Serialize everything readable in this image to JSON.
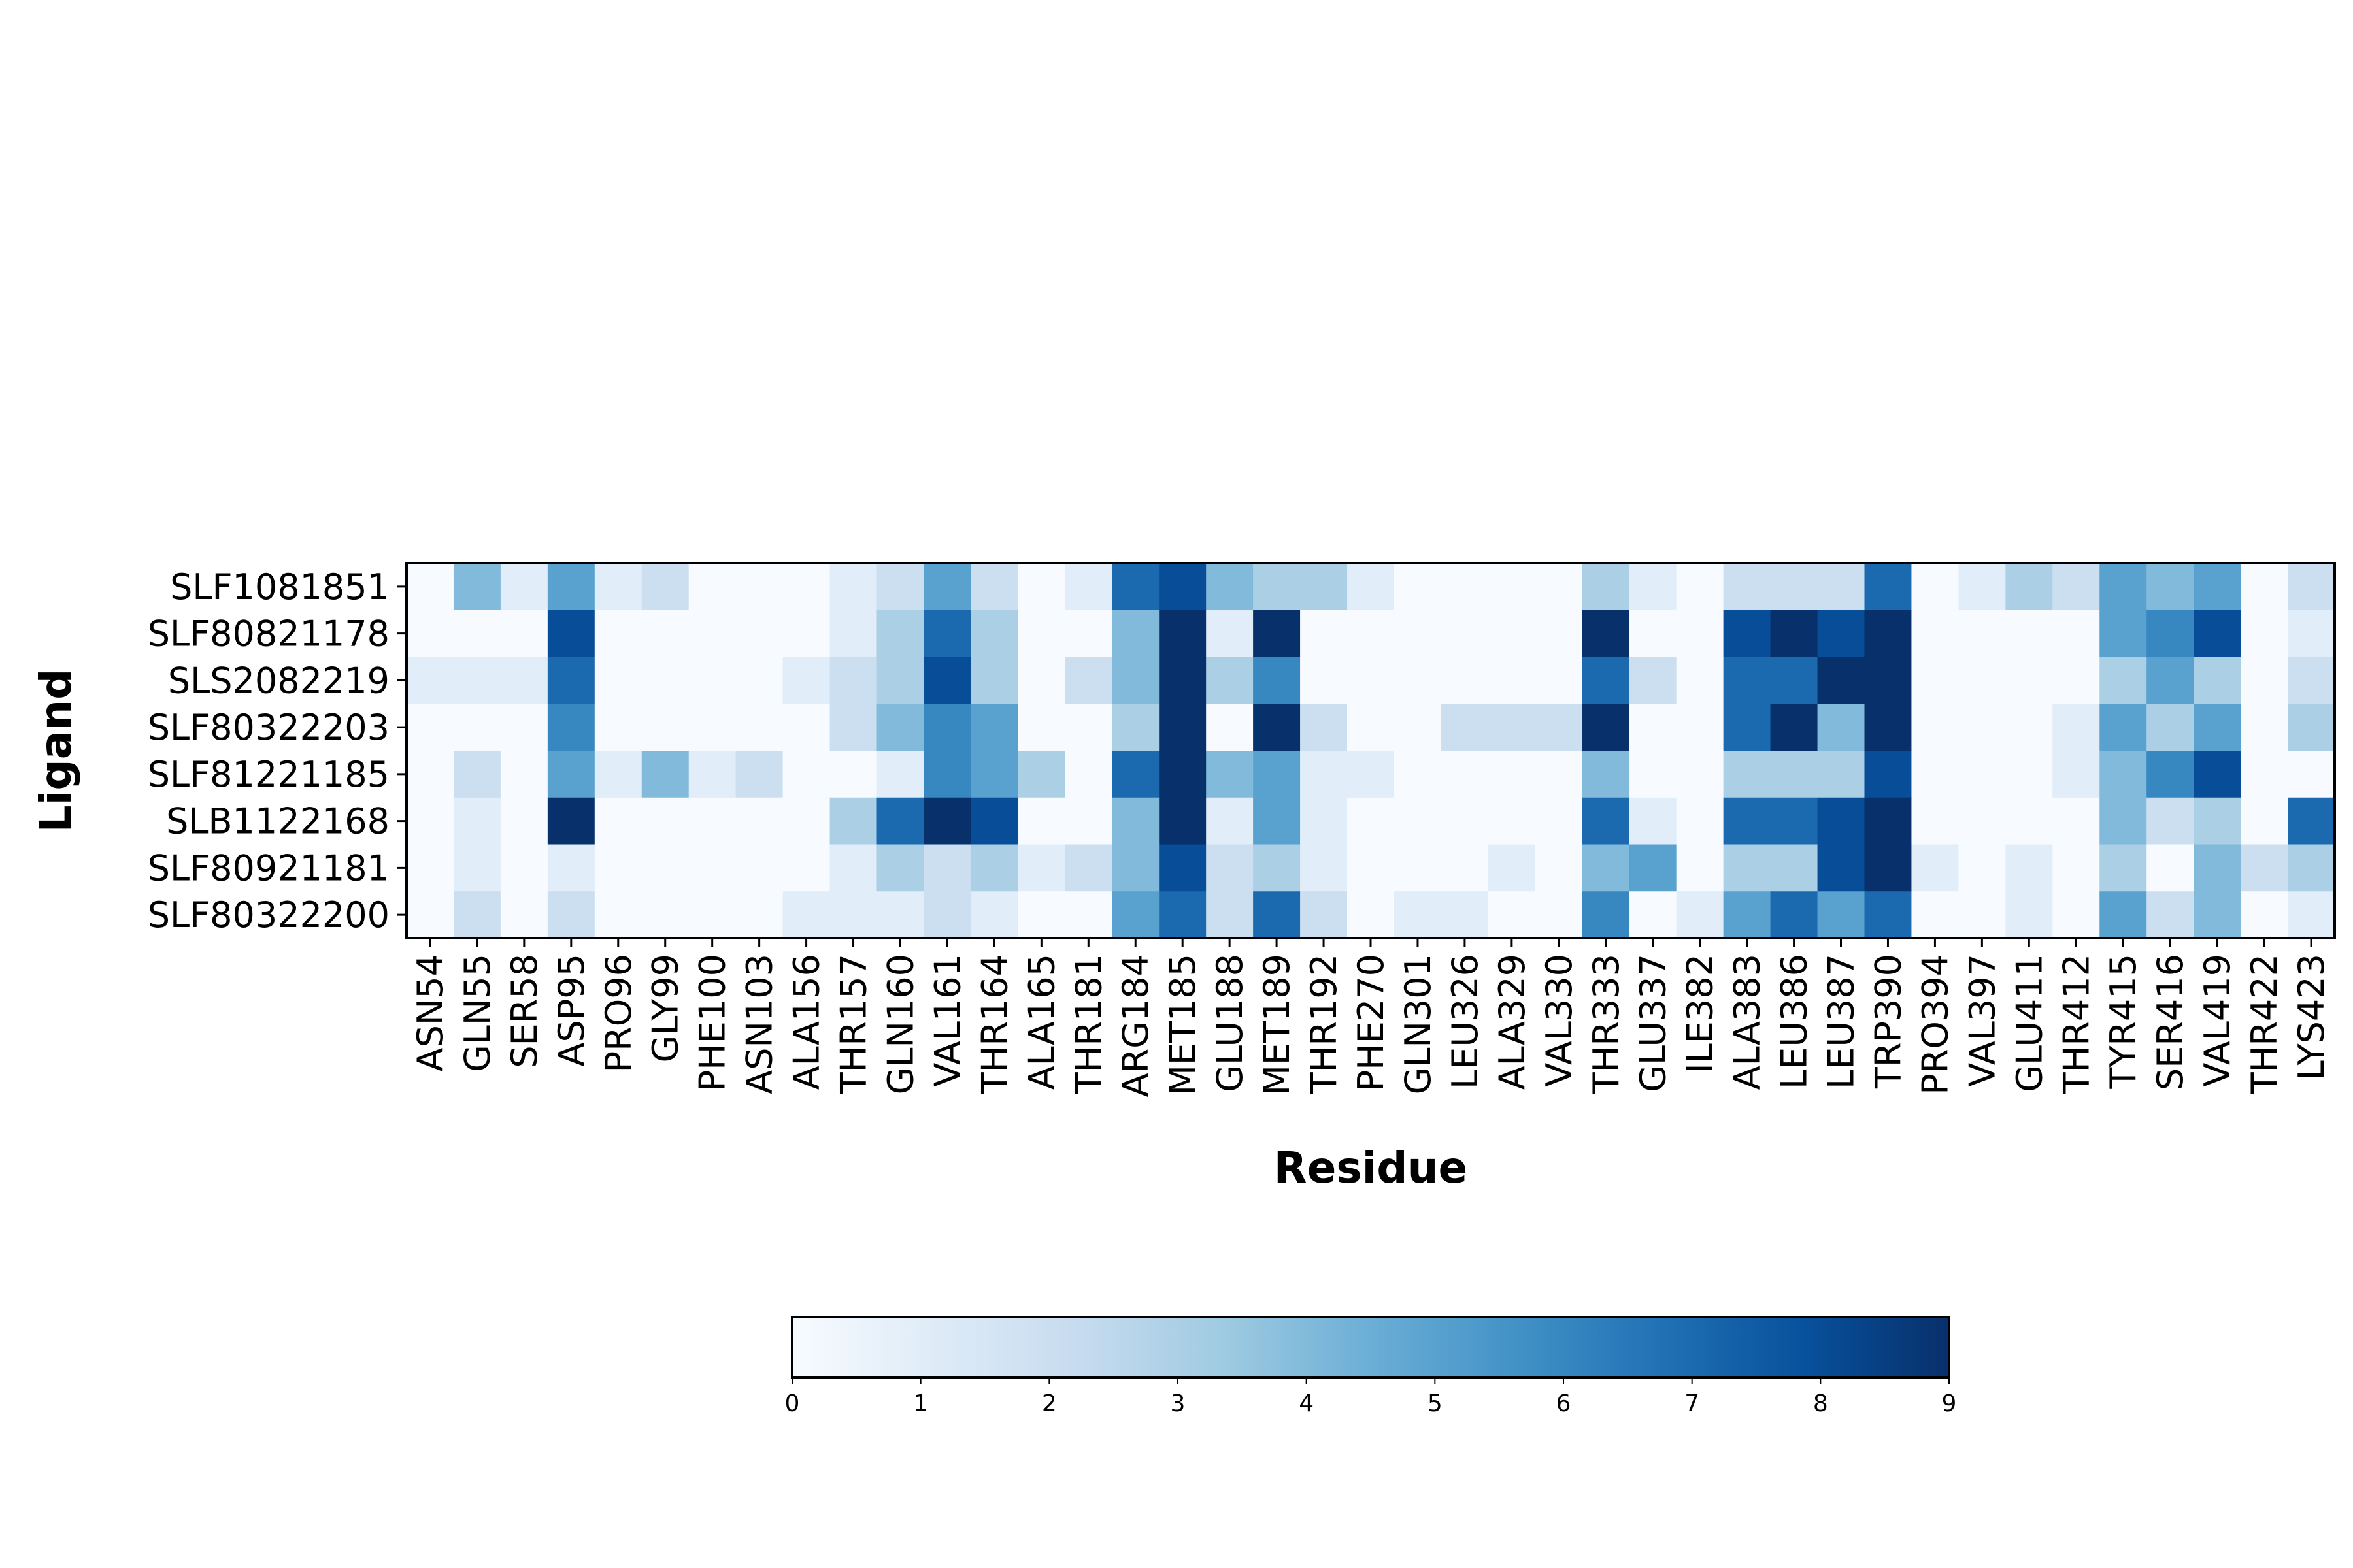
{
  "chart_data": {
    "type": "heatmap",
    "xlabel": "Residue",
    "ylabel": "Ligand",
    "colormap": "Blues",
    "colorbar": {
      "min": 0,
      "max": 9,
      "ticks": [
        0,
        1,
        2,
        3,
        4,
        5,
        6,
        7,
        8,
        9
      ],
      "placement": "bottom"
    },
    "x_categories": [
      "ASN54",
      "GLN55",
      "SER58",
      "ASP95",
      "PRO96",
      "GLY99",
      "PHE100",
      "ASN103",
      "ALA156",
      "THR157",
      "GLN160",
      "VAL161",
      "THR164",
      "ALA165",
      "THR181",
      "ARG184",
      "MET185",
      "GLU188",
      "MET189",
      "THR192",
      "PHE270",
      "GLN301",
      "LEU326",
      "ALA329",
      "VAL330",
      "THR333",
      "GLU337",
      "ILE382",
      "ALA383",
      "LEU386",
      "LEU387",
      "TRP390",
      "PRO394",
      "VAL397",
      "GLU411",
      "THR412",
      "TYR415",
      "SER416",
      "VAL419",
      "THR422",
      "LYS423"
    ],
    "y_categories": [
      "SLF1081851",
      "SLF80821178",
      "SLS2082219",
      "SLF80322203",
      "SLF81221185",
      "SLB1122168",
      "SLF80921181",
      "SLF80322200"
    ],
    "values": [
      [
        0,
        4,
        1,
        5,
        1,
        2,
        0,
        0,
        0,
        1,
        2,
        5,
        2,
        0,
        1,
        7,
        8,
        4,
        3,
        3,
        1,
        0,
        0,
        0,
        0,
        3,
        1,
        0,
        2,
        2,
        2,
        7,
        0,
        1,
        3,
        2,
        5,
        4,
        5,
        0,
        2
      ],
      [
        0,
        0,
        0,
        8,
        0,
        0,
        0,
        0,
        0,
        1,
        3,
        7,
        3,
        0,
        0,
        4,
        9,
        1,
        9,
        0,
        0,
        0,
        0,
        0,
        0,
        9,
        0,
        0,
        8,
        9,
        8,
        9,
        0,
        0,
        0,
        0,
        5,
        6,
        8,
        0,
        1
      ],
      [
        1,
        1,
        1,
        7,
        0,
        0,
        0,
        0,
        1,
        2,
        3,
        8,
        3,
        0,
        2,
        4,
        9,
        3,
        6,
        0,
        0,
        0,
        0,
        0,
        0,
        7,
        2,
        0,
        7,
        7,
        9,
        9,
        0,
        0,
        0,
        0,
        3,
        5,
        3,
        0,
        2
      ],
      [
        0,
        0,
        0,
        6,
        0,
        0,
        0,
        0,
        0,
        2,
        4,
        6,
        5,
        0,
        0,
        3,
        9,
        0,
        9,
        2,
        0,
        0,
        2,
        2,
        2,
        9,
        0,
        0,
        7,
        9,
        4,
        9,
        0,
        0,
        0,
        1,
        5,
        3,
        5,
        0,
        3
      ],
      [
        0,
        2,
        0,
        5,
        1,
        4,
        1,
        2,
        0,
        0,
        1,
        6,
        5,
        3,
        0,
        7,
        9,
        4,
        5,
        1,
        1,
        0,
        0,
        0,
        0,
        4,
        0,
        0,
        3,
        3,
        3,
        8,
        0,
        0,
        0,
        1,
        4,
        6,
        8,
        0,
        0
      ],
      [
        0,
        1,
        0,
        9,
        0,
        0,
        0,
        0,
        0,
        3,
        7,
        9,
        8,
        0,
        0,
        4,
        9,
        1,
        5,
        1,
        0,
        0,
        0,
        0,
        0,
        7,
        1,
        0,
        7,
        7,
        8,
        9,
        0,
        0,
        0,
        0,
        4,
        2,
        3,
        0,
        7
      ],
      [
        0,
        1,
        0,
        1,
        0,
        0,
        0,
        0,
        0,
        1,
        3,
        2,
        3,
        1,
        2,
        4,
        8,
        2,
        3,
        1,
        0,
        0,
        0,
        1,
        0,
        4,
        5,
        0,
        3,
        3,
        8,
        9,
        1,
        0,
        1,
        0,
        3,
        0,
        4,
        2,
        3
      ],
      [
        0,
        2,
        0,
        2,
        0,
        0,
        0,
        0,
        1,
        1,
        1,
        2,
        1,
        0,
        0,
        5,
        7,
        2,
        7,
        2,
        0,
        1,
        1,
        0,
        0,
        6,
        0,
        1,
        5,
        7,
        5,
        7,
        0,
        0,
        1,
        0,
        5,
        2,
        4,
        0,
        1
      ]
    ]
  }
}
